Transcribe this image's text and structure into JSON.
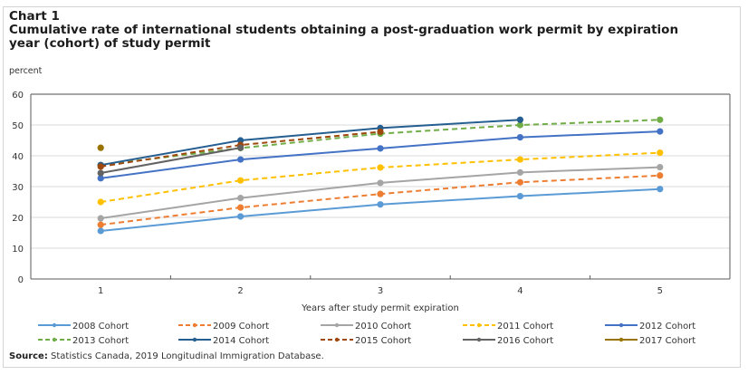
{
  "chart_data": {
    "type": "line",
    "chart_label": "Chart 1",
    "title": "Cumulative rate of international students obtaining a post-graduation work permit by expiration year (cohort) of study permit",
    "title_lines": [
      "Chart 1",
      "Cumulative rate of international  students obtaining  a post-graduation work permit by expiration",
      "year (cohort)  of study permit"
    ],
    "ylabel": "percent",
    "xlabel": "Years after study permit expiration",
    "ylim": [
      0,
      60
    ],
    "yticks": [
      0,
      10,
      20,
      30,
      40,
      50,
      60
    ],
    "categories": [
      "1",
      "2",
      "3",
      "4",
      "5"
    ],
    "grid": true,
    "legend_position": "bottom",
    "series": [
      {
        "name": "2008 Cohort",
        "color": "#5b9bd5",
        "dash": false,
        "values": [
          15.6,
          20.3,
          24.2,
          26.9,
          29.2
        ]
      },
      {
        "name": "2009 Cohort",
        "color": "#ed7d31",
        "dash": true,
        "values": [
          17.6,
          23.2,
          27.6,
          31.4,
          33.6
        ]
      },
      {
        "name": "2010 Cohort",
        "color": "#a5a5a5",
        "dash": false,
        "values": [
          19.7,
          26.3,
          31.2,
          34.6,
          36.3
        ]
      },
      {
        "name": "2011 Cohort",
        "color": "#ffc000",
        "dash": true,
        "values": [
          25.0,
          32.0,
          36.2,
          38.8,
          41.0
        ]
      },
      {
        "name": "2012 Cohort",
        "color": "#4472c4",
        "dash": false,
        "values": [
          32.7,
          38.8,
          42.4,
          46.0,
          47.9
        ]
      },
      {
        "name": "2013 Cohort",
        "color": "#70ad47",
        "dash": true,
        "values": [
          37.0,
          42.5,
          47.2,
          50.0,
          51.7
        ]
      },
      {
        "name": "2014 Cohort",
        "color": "#255e91",
        "dash": false,
        "values": [
          37.0,
          45.0,
          49.0,
          51.7,
          null
        ]
      },
      {
        "name": "2015 Cohort",
        "color": "#9e480e",
        "dash": true,
        "values": [
          36.5,
          43.5,
          47.8,
          null,
          null
        ]
      },
      {
        "name": "2016 Cohort",
        "color": "#636363",
        "dash": false,
        "values": [
          34.4,
          42.6,
          null,
          null,
          null
        ]
      },
      {
        "name": "2017 Cohort",
        "color": "#997300",
        "dash": false,
        "values": [
          42.6,
          null,
          null,
          null,
          null
        ]
      }
    ]
  },
  "source": {
    "label": "Source:",
    "text": " Statistics Canada, 2019 Longitudinal Immigration Database."
  }
}
